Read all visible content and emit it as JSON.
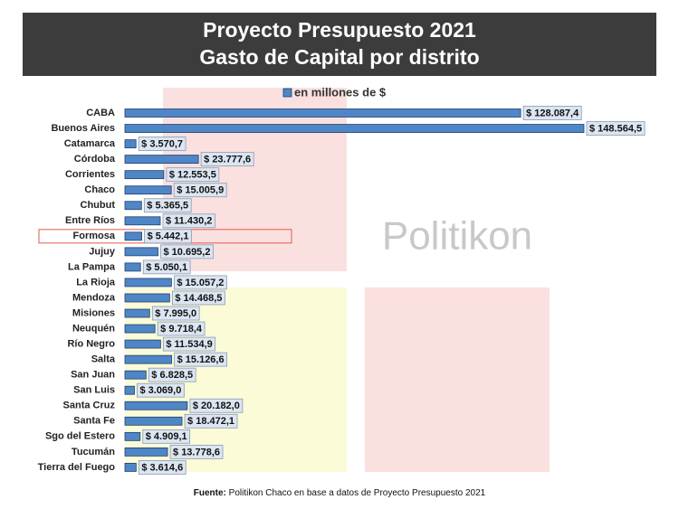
{
  "chart_data": {
    "type": "bar",
    "orientation": "horizontal",
    "title": "Proyecto Presupuesto 2021",
    "subtitle": "Gasto de Capital por distrito",
    "categories": [
      "CABA",
      "Buenos Aires",
      "Catamarca",
      "Córdoba",
      "Corrientes",
      "Chaco",
      "Chubut",
      "Entre Ríos",
      "Formosa",
      "Jujuy",
      "La Pampa",
      "La Rioja",
      "Mendoza",
      "Misiones",
      "Neuquén",
      "Río Negro",
      "Salta",
      "San Juan",
      "San Luis",
      "Santa Cruz",
      "Santa Fe",
      "Sgo del Estero",
      "Tucumán",
      "Tierra del Fuego"
    ],
    "series": [
      {
        "name": "en millones de $",
        "color": "#4f86c6",
        "values": [
          128087.4,
          148564.5,
          3570.7,
          23777.6,
          12553.5,
          15005.9,
          5365.5,
          11430.2,
          5442.1,
          10695.2,
          5050.1,
          15057.2,
          14468.5,
          7995.0,
          9718.4,
          11534.9,
          15126.6,
          6828.5,
          3069.0,
          20182.0,
          18472.1,
          4909.1,
          13778.6,
          3614.6
        ],
        "value_labels": [
          "$ 128.087,4",
          "$ 148.564,5",
          "$ 3.570,7",
          "$ 23.777,6",
          "$ 12.553,5",
          "$ 15.005,9",
          "$ 5.365,5",
          "$ 11.430,2",
          "$ 5.442,1",
          "$ 10.695,2",
          "$ 5.050,1",
          "$ 15.057,2",
          "$ 14.468,5",
          "$ 7.995,0",
          "$ 9.718,4",
          "$ 11.534,9",
          "$ 15.126,6",
          "$ 6.828,5",
          "$ 3.069,0",
          "$ 20.182,0",
          "$ 18.472,1",
          "$ 4.909,1",
          "$ 13.778,6",
          "$ 3.614,6"
        ]
      }
    ],
    "highlight": "Formosa",
    "watermark": "Politikon",
    "source_label": "Fuente:",
    "source": "Politikon Chaco en base a datos de Proyecto Presupuesto 2021"
  }
}
